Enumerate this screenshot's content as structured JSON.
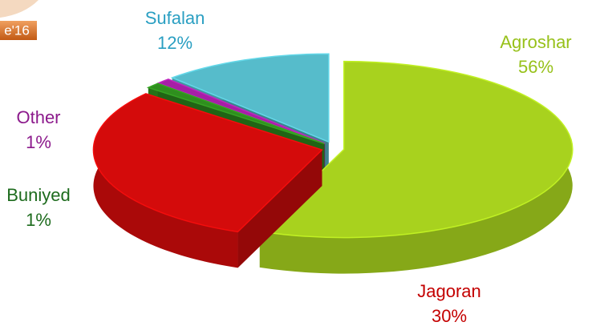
{
  "badge": "e'16",
  "chart_data": {
    "type": "pie3d",
    "categories": [
      "Agroshar",
      "Jagoran",
      "Buniyed",
      "Other",
      "Sufalan"
    ],
    "values": [
      56,
      30,
      1,
      1,
      12
    ],
    "value_labels": [
      "56%",
      "30%",
      "1%",
      "1%",
      "12%"
    ],
    "colors": [
      "#a8d21e",
      "#d40b0b",
      "#2f8f1e",
      "#a61fa6",
      "#56bccb"
    ],
    "label_colors": [
      "#97c11a",
      "#c40000",
      "#1d6b1d",
      "#8c1a8c",
      "#2a9fc2"
    ]
  }
}
